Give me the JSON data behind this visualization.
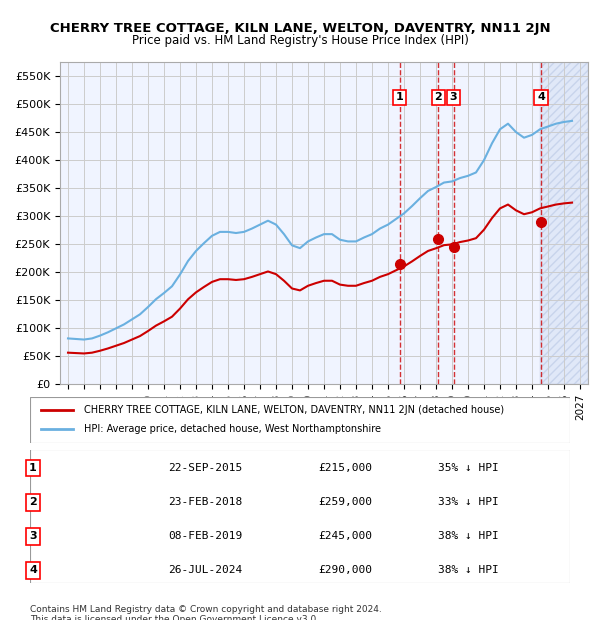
{
  "title": "CHERRY TREE COTTAGE, KILN LANE, WELTON, DAVENTRY, NN11 2JN",
  "subtitle": "Price paid vs. HM Land Registry's House Price Index (HPI)",
  "ylabel": "",
  "ylim": [
    0,
    575000
  ],
  "yticks": [
    0,
    50000,
    100000,
    150000,
    200000,
    250000,
    300000,
    350000,
    400000,
    450000,
    500000,
    550000
  ],
  "ytick_labels": [
    "£0",
    "£50K",
    "£100K",
    "£150K",
    "£200K",
    "£250K",
    "£300K",
    "£350K",
    "£400K",
    "£450K",
    "£500K",
    "£550K"
  ],
  "hpi_color": "#6ab0e0",
  "price_color": "#cc0000",
  "sale_marker_color": "#cc0000",
  "vline_color": "#cc0000",
  "grid_color": "#cccccc",
  "bg_color": "#f0f4ff",
  "hatch_color": "#d0d8f0",
  "sales": [
    {
      "label": "1",
      "date_num": 2015.73,
      "price": 215000,
      "note": "22-SEP-2015",
      "pct": "35% ↓ HPI"
    },
    {
      "label": "2",
      "date_num": 2018.15,
      "price": 259000,
      "note": "23-FEB-2018",
      "pct": "33% ↓ HPI"
    },
    {
      "label": "3",
      "date_num": 2019.1,
      "price": 245000,
      "note": "08-FEB-2019",
      "pct": "38% ↓ HPI"
    },
    {
      "label": "4",
      "date_num": 2024.57,
      "price": 290000,
      "note": "26-JUL-2024",
      "pct": "38% ↓ HPI"
    }
  ],
  "legend_entries": [
    {
      "label": "CHERRY TREE COTTAGE, KILN LANE, WELTON, DAVENTRY, NN11 2JN (detached house)",
      "color": "#cc0000"
    },
    {
      "label": "HPI: Average price, detached house, West Northamptonshire",
      "color": "#6ab0e0"
    }
  ],
  "table_rows": [
    {
      "num": "1",
      "date": "22-SEP-2015",
      "price": "£215,000",
      "pct": "35% ↓ HPI"
    },
    {
      "num": "2",
      "date": "23-FEB-2018",
      "price": "£259,000",
      "pct": "33% ↓ HPI"
    },
    {
      "num": "3",
      "date": "08-FEB-2019",
      "price": "£245,000",
      "pct": "38% ↓ HPI"
    },
    {
      "num": "4",
      "date": "26-JUL-2024",
      "price": "£290,000",
      "pct": "38% ↓ HPI"
    }
  ],
  "footer": "Contains HM Land Registry data © Crown copyright and database right 2024.\nThis data is licensed under the Open Government Licence v3.0.",
  "xmin": 1994.5,
  "xmax": 2027.5
}
